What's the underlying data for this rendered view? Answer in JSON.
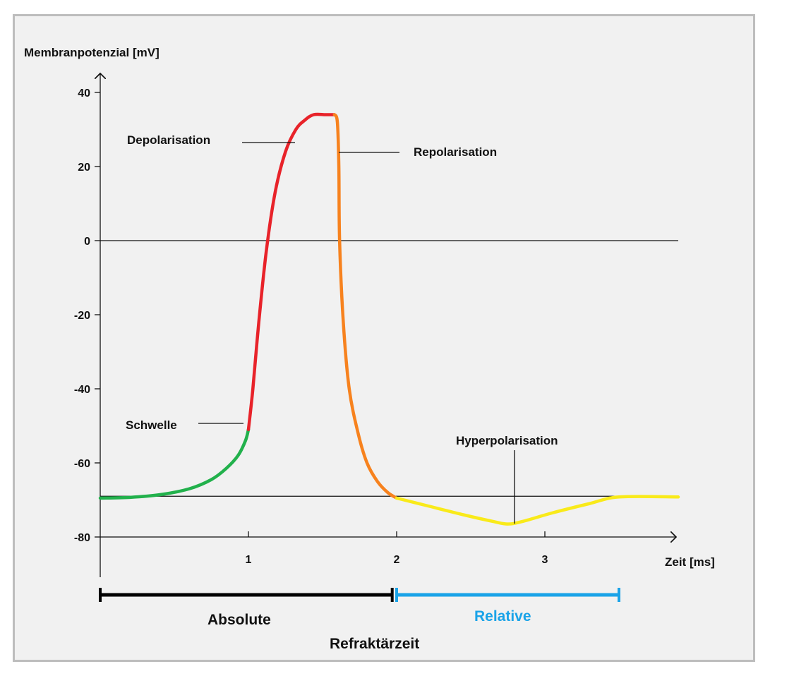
{
  "chart_data": {
    "type": "line",
    "ylabel": "Membranpotenzial [mV]",
    "xlabel": "Zeit [ms]",
    "ylim": [
      -80,
      40
    ],
    "xlim": [
      0,
      3.9
    ],
    "yticks": [
      40,
      20,
      0,
      -20,
      -40,
      -60,
      -80
    ],
    "xticks": [
      1,
      2,
      3
    ],
    "reference_lines": [
      0,
      -69
    ],
    "series": [
      {
        "color": "#22b14c",
        "x": [
          0,
          0.2,
          0.4,
          0.6,
          0.75,
          0.85,
          0.93,
          0.98,
          1.0
        ],
        "y": [
          -69.5,
          -69.3,
          -68.6,
          -67,
          -64.5,
          -61.5,
          -58,
          -54,
          -51
        ]
      },
      {
        "color": "#e8232a",
        "x": [
          1.0,
          1.03,
          1.07,
          1.12,
          1.18,
          1.25,
          1.32,
          1.38,
          1.44,
          1.52,
          1.58
        ],
        "y": [
          -51,
          -40,
          -22,
          -3,
          13,
          24,
          30,
          32.5,
          34,
          34,
          34
        ]
      },
      {
        "color": "#f7821e",
        "x": [
          1.58,
          1.6,
          1.61,
          1.615,
          1.64,
          1.68,
          1.74,
          1.8,
          1.87,
          1.94,
          2.0
        ],
        "y": [
          34,
          32,
          20,
          0,
          -22,
          -40,
          -52,
          -60,
          -65,
          -68,
          -69.5
        ]
      },
      {
        "color": "#f9ea1a",
        "x": [
          2.0,
          2.2,
          2.45,
          2.65,
          2.75,
          2.85,
          3.05,
          3.3,
          3.5,
          3.9
        ],
        "y": [
          -69.5,
          -71.5,
          -74,
          -75.8,
          -76.5,
          -75.8,
          -73.5,
          -71,
          -69.2,
          -69.2
        ]
      }
    ],
    "annotations": [
      {
        "text": "Depolarisation",
        "target_x": 1.32,
        "target_y": 29
      },
      {
        "text": "Repolarisation",
        "target_x": 1.62,
        "target_y": 24
      },
      {
        "text": "Schwelle",
        "target_x": 0.99,
        "target_y": -50
      },
      {
        "text": "Hyperpolarisation",
        "target_x": 2.78,
        "target_y": -76
      }
    ],
    "refractory": {
      "absolute": {
        "label": "Absolute",
        "x": [
          0,
          1.97
        ],
        "color": "#000000"
      },
      "relative": {
        "label": "Relative",
        "x": [
          2.0,
          3.5
        ],
        "color": "#1aa3e8"
      },
      "caption": "Refraktärzeit"
    }
  }
}
